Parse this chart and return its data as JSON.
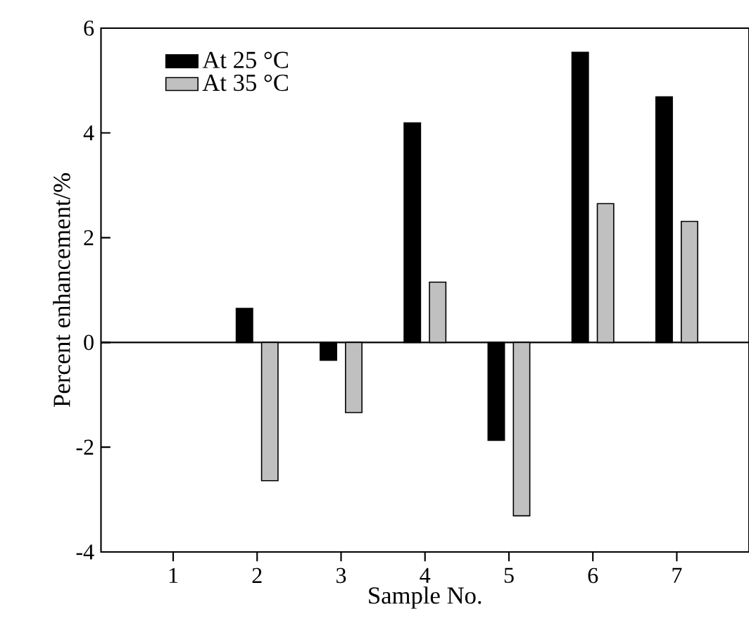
{
  "chart_data": {
    "type": "bar",
    "xlabel": "Sample No.",
    "ylabel": "Percent enhancement/%",
    "categories": [
      "1",
      "2",
      "3",
      "4",
      "5",
      "6",
      "7"
    ],
    "series": [
      {
        "name": "At 25 °C",
        "color": "#000000",
        "values": [
          null,
          0.65,
          -0.34,
          4.19,
          -1.87,
          5.54,
          4.69
        ]
      },
      {
        "name": "At 35 °C",
        "color": "#c0c0c0",
        "values": [
          null,
          -2.64,
          -1.34,
          1.15,
          -3.31,
          2.65,
          2.31
        ]
      }
    ],
    "ylim": [
      -4,
      6
    ],
    "yticks": [
      -4,
      -2,
      0,
      2,
      4,
      6
    ],
    "legend": "top left"
  }
}
